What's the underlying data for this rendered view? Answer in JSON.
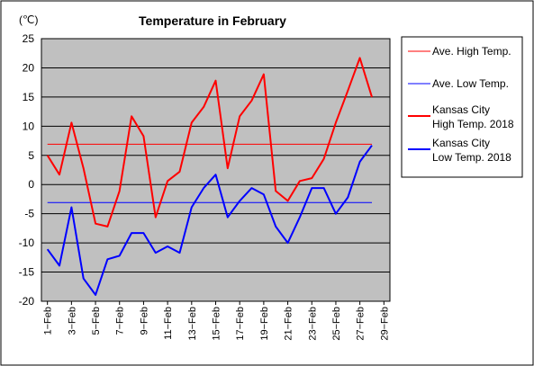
{
  "chart_data": {
    "type": "line",
    "title": "Temperature in February",
    "unit_label": "(℃)",
    "ylim": [
      -20,
      25
    ],
    "yticks": [
      25,
      20,
      15,
      10,
      5,
      0,
      -5,
      -10,
      -15,
      -20
    ],
    "x_tick_labels": [
      "1−Feb",
      "3−Feb",
      "5−Feb",
      "7−Feb",
      "9−Feb",
      "11−Feb",
      "13−Feb",
      "15−Feb",
      "17−Feb",
      "19−Feb",
      "21−Feb",
      "23−Feb",
      "25−Feb",
      "27−Feb",
      "29−Feb"
    ],
    "x": [
      1,
      2,
      3,
      4,
      5,
      6,
      7,
      8,
      9,
      10,
      11,
      12,
      13,
      14,
      15,
      16,
      17,
      18,
      19,
      20,
      21,
      22,
      23,
      24,
      25,
      26,
      27,
      28
    ],
    "grid": "horizontal",
    "legend_position": "right",
    "series": [
      {
        "name": "Ave. High Temp.",
        "color": "#ff0000",
        "style": "thin",
        "values": [
          6.9,
          6.9,
          6.9,
          6.9,
          6.9,
          6.9,
          6.9,
          6.9,
          6.9,
          6.9,
          6.9,
          6.9,
          6.9,
          6.9,
          6.9,
          6.9,
          6.9,
          6.9,
          6.9,
          6.9,
          6.9,
          6.9,
          6.9,
          6.9,
          6.9,
          6.9,
          6.9,
          6.9
        ]
      },
      {
        "name": "Ave. Low Temp.",
        "color": "#0000ff",
        "style": "thin",
        "values": [
          -3.1,
          -3.1,
          -3.1,
          -3.1,
          -3.1,
          -3.1,
          -3.1,
          -3.1,
          -3.1,
          -3.1,
          -3.1,
          -3.1,
          -3.1,
          -3.1,
          -3.1,
          -3.1,
          -3.1,
          -3.1,
          -3.1,
          -3.1,
          -3.1,
          -3.1,
          -3.1,
          -3.1,
          -3.1,
          -3.1,
          -3.1,
          -3.1
        ]
      },
      {
        "name": "Kansas City High Temp. 2018",
        "legend_lines": [
          "Kansas City",
          "High Temp. 2018"
        ],
        "color": "#ff0000",
        "style": "thick",
        "values": [
          5.0,
          1.7,
          10.6,
          2.8,
          -6.7,
          -7.2,
          -1.1,
          11.7,
          8.3,
          -5.6,
          0.6,
          2.2,
          10.6,
          13.3,
          17.8,
          2.8,
          11.7,
          14.4,
          18.9,
          -1.1,
          -2.8,
          0.6,
          1.1,
          4.4,
          10.6,
          16.1,
          21.7,
          15.0
        ]
      },
      {
        "name": "Kansas City Low Temp. 2018",
        "legend_lines": [
          "Kansas City",
          "Low Temp. 2018"
        ],
        "color": "#0000ff",
        "style": "thick",
        "values": [
          -11.1,
          -13.9,
          -3.9,
          -16.1,
          -18.9,
          -12.8,
          -12.2,
          -8.3,
          -8.3,
          -11.7,
          -10.6,
          -11.7,
          -3.9,
          -0.6,
          1.7,
          -5.6,
          -2.8,
          -0.6,
          -1.7,
          -7.2,
          -10.0,
          -5.6,
          -0.6,
          -0.6,
          -5.0,
          -2.2,
          3.9,
          6.7
        ]
      }
    ]
  }
}
